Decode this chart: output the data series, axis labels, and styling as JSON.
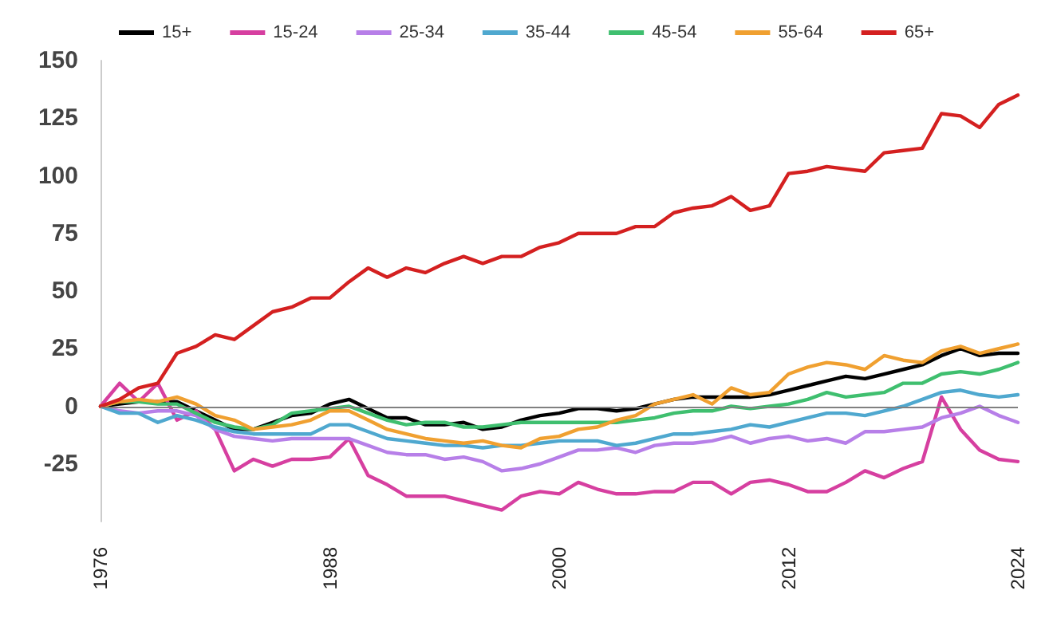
{
  "chart_data": {
    "type": "line",
    "x": [
      1976,
      1977,
      1978,
      1979,
      1980,
      1981,
      1982,
      1983,
      1984,
      1985,
      1986,
      1987,
      1988,
      1989,
      1990,
      1991,
      1992,
      1993,
      1994,
      1995,
      1996,
      1997,
      1998,
      1999,
      2000,
      2001,
      2002,
      2003,
      2004,
      2005,
      2006,
      2007,
      2008,
      2009,
      2010,
      2011,
      2012,
      2013,
      2014,
      2015,
      2016,
      2017,
      2018,
      2019,
      2020,
      2021,
      2022,
      2023,
      2024
    ],
    "series": [
      {
        "name": "15+",
        "color": "#000000",
        "values": [
          0,
          1,
          2,
          2,
          2,
          -2,
          -6,
          -10,
          -10,
          -7,
          -4,
          -3,
          1,
          3,
          -1,
          -5,
          -5,
          -8,
          -8,
          -7,
          -10,
          -9,
          -6,
          -4,
          -3,
          -1,
          -1,
          -2,
          -1,
          1,
          3,
          4,
          4,
          4,
          4,
          5,
          7,
          9,
          11,
          13,
          12,
          14,
          16,
          18,
          22,
          25,
          22,
          23,
          23
        ]
      },
      {
        "name": "15-24",
        "color": "#d63fa0",
        "values": [
          0,
          10,
          2,
          10,
          -6,
          -2,
          -10,
          -28,
          -23,
          -26,
          -23,
          -23,
          -22,
          -14,
          -30,
          -34,
          -39,
          -39,
          -39,
          -41,
          -43,
          -45,
          -39,
          -37,
          -38,
          -33,
          -36,
          -38,
          -38,
          -37,
          -37,
          -33,
          -33,
          -38,
          -33,
          -32,
          -34,
          -37,
          -37,
          -33,
          -28,
          -31,
          -27,
          -24,
          4,
          -10,
          -19,
          -23,
          -24
        ]
      },
      {
        "name": "25-34",
        "color": "#b77fe8",
        "values": [
          0,
          -2,
          -3,
          -2,
          -2,
          -4,
          -10,
          -13,
          -14,
          -15,
          -14,
          -14,
          -14,
          -14,
          -17,
          -20,
          -21,
          -21,
          -23,
          -22,
          -24,
          -28,
          -27,
          -25,
          -22,
          -19,
          -19,
          -18,
          -20,
          -17,
          -16,
          -16,
          -15,
          -13,
          -16,
          -14,
          -13,
          -15,
          -14,
          -16,
          -11,
          -11,
          -10,
          -9,
          -5,
          -3,
          0,
          -4,
          -7
        ]
      },
      {
        "name": "35-44",
        "color": "#4fa8cf",
        "values": [
          0,
          -3,
          -3,
          -7,
          -4,
          -6,
          -9,
          -11,
          -12,
          -12,
          -12,
          -12,
          -8,
          -8,
          -11,
          -14,
          -15,
          -16,
          -17,
          -17,
          -18,
          -17,
          -17,
          -16,
          -15,
          -15,
          -15,
          -17,
          -16,
          -14,
          -12,
          -12,
          -11,
          -10,
          -8,
          -9,
          -7,
          -5,
          -3,
          -3,
          -4,
          -2,
          0,
          3,
          6,
          7,
          5,
          4,
          5
        ]
      },
      {
        "name": "45-54",
        "color": "#3fbf6f",
        "values": [
          0,
          2,
          2,
          1,
          1,
          -3,
          -7,
          -9,
          -10,
          -8,
          -3,
          -2,
          -1,
          0,
          -3,
          -6,
          -8,
          -7,
          -7,
          -9,
          -9,
          -8,
          -7,
          -7,
          -7,
          -7,
          -7,
          -7,
          -6,
          -5,
          -3,
          -2,
          -2,
          0,
          -1,
          0,
          1,
          3,
          6,
          4,
          5,
          6,
          10,
          10,
          14,
          15,
          14,
          16,
          19
        ]
      },
      {
        "name": "55-64",
        "color": "#f0a030",
        "values": [
          0,
          2,
          3,
          2,
          4,
          1,
          -4,
          -6,
          -10,
          -9,
          -8,
          -6,
          -2,
          -2,
          -6,
          -10,
          -12,
          -14,
          -15,
          -16,
          -15,
          -17,
          -18,
          -14,
          -13,
          -10,
          -9,
          -6,
          -4,
          1,
          3,
          5,
          1,
          8,
          5,
          6,
          14,
          17,
          19,
          18,
          16,
          22,
          20,
          19,
          24,
          26,
          23,
          25,
          27
        ]
      },
      {
        "name": "65+",
        "color": "#d42020",
        "values": [
          0,
          3,
          8,
          10,
          23,
          26,
          31,
          29,
          35,
          41,
          43,
          47,
          47,
          54,
          60,
          56,
          60,
          58,
          62,
          65,
          62,
          65,
          65,
          69,
          71,
          75,
          75,
          75,
          78,
          78,
          84,
          86,
          87,
          91,
          85,
          87,
          101,
          102,
          104,
          103,
          102,
          110,
          111,
          112,
          127,
          126,
          121,
          131,
          135
        ]
      }
    ],
    "xlim": [
      1976,
      2024
    ],
    "xticks": [
      1976,
      1988,
      2000,
      2012,
      2024
    ],
    "ylim": [
      -50,
      150
    ],
    "yticks": [
      -25,
      0,
      25,
      50,
      75,
      100,
      125,
      150
    ],
    "ref_lines": [
      {
        "axis": "y",
        "value": 0,
        "color": "#808080"
      }
    ],
    "grid": false,
    "legend": "top",
    "marker": "none",
    "line_style": "solid"
  }
}
